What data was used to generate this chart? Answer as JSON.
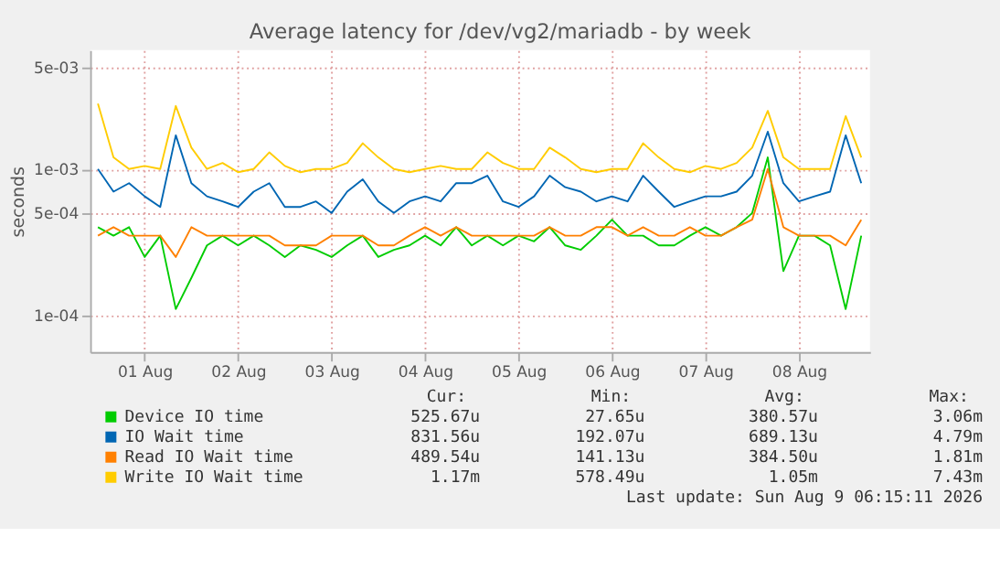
{
  "chart_data": {
    "type": "line",
    "title": "Average latency for /dev/vg2/mariadb - by week",
    "ylabel": "seconds",
    "x": [
      "2026-08-01T00:00",
      "2026-08-01T04:00",
      "2026-08-01T08:00",
      "2026-08-01T12:00",
      "2026-08-01T16:00",
      "2026-08-01T20:00",
      "2026-08-02T00:00",
      "2026-08-02T04:00",
      "2026-08-02T08:00",
      "2026-08-02T12:00",
      "2026-08-02T16:00",
      "2026-08-02T20:00",
      "2026-08-03T00:00",
      "2026-08-03T04:00",
      "2026-08-03T08:00",
      "2026-08-03T12:00",
      "2026-08-03T16:00",
      "2026-08-03T20:00",
      "2026-08-04T00:00",
      "2026-08-04T04:00",
      "2026-08-04T08:00",
      "2026-08-04T12:00",
      "2026-08-04T16:00",
      "2026-08-04T20:00",
      "2026-08-05T00:00",
      "2026-08-05T04:00",
      "2026-08-05T08:00",
      "2026-08-05T12:00",
      "2026-08-05T16:00",
      "2026-08-05T20:00",
      "2026-08-06T00:00",
      "2026-08-06T04:00",
      "2026-08-06T08:00",
      "2026-08-06T12:00",
      "2026-08-06T16:00",
      "2026-08-06T20:00",
      "2026-08-07T00:00",
      "2026-08-07T04:00",
      "2026-08-07T08:00",
      "2026-08-07T12:00",
      "2026-08-07T16:00",
      "2026-08-07T20:00",
      "2026-08-08T00:00",
      "2026-08-08T04:00",
      "2026-08-08T08:00",
      "2026-08-08T12:00",
      "2026-08-08T16:00",
      "2026-08-08T20:00",
      "2026-08-09T00:00",
      "2026-08-09T04:00"
    ],
    "series": [
      {
        "name": "Device IO time",
        "color": "#00cc00",
        "values": [
          0.0004,
          0.00035,
          0.0004,
          0.00025,
          0.00035,
          0.00011,
          0.00018,
          0.0003,
          0.00035,
          0.0003,
          0.00035,
          0.0003,
          0.00025,
          0.0003,
          0.00028,
          0.00025,
          0.0003,
          0.00035,
          0.00025,
          0.00028,
          0.0003,
          0.00035,
          0.0003,
          0.0004,
          0.0003,
          0.00035,
          0.0003,
          0.00035,
          0.00032,
          0.0004,
          0.0003,
          0.00028,
          0.00035,
          0.00045,
          0.00035,
          0.00035,
          0.0003,
          0.0003,
          0.00035,
          0.0004,
          0.00035,
          0.0004,
          0.0005,
          0.0012,
          0.0002,
          0.00035,
          0.00035,
          0.0003,
          0.00011,
          0.00035
        ]
      },
      {
        "name": "IO Wait time",
        "color": "#0066b3",
        "values": [
          0.001,
          0.0007,
          0.0008,
          0.00065,
          0.00055,
          0.0017,
          0.0008,
          0.00065,
          0.0006,
          0.00055,
          0.0007,
          0.0008,
          0.00055,
          0.00055,
          0.0006,
          0.0005,
          0.0007,
          0.00085,
          0.0006,
          0.0005,
          0.0006,
          0.00065,
          0.0006,
          0.0008,
          0.0008,
          0.0009,
          0.0006,
          0.00055,
          0.00065,
          0.0009,
          0.00075,
          0.0007,
          0.0006,
          0.00065,
          0.0006,
          0.0009,
          0.0007,
          0.00055,
          0.0006,
          0.00065,
          0.00065,
          0.0007,
          0.0009,
          0.0018,
          0.0008,
          0.0006,
          0.00065,
          0.0007,
          0.0017,
          0.0008
        ]
      },
      {
        "name": "Read IO Wait time",
        "color": "#ff8000",
        "values": [
          0.00035,
          0.0004,
          0.00035,
          0.00035,
          0.00035,
          0.00025,
          0.0004,
          0.00035,
          0.00035,
          0.00035,
          0.00035,
          0.00035,
          0.0003,
          0.0003,
          0.0003,
          0.00035,
          0.00035,
          0.00035,
          0.0003,
          0.0003,
          0.00035,
          0.0004,
          0.00035,
          0.0004,
          0.00035,
          0.00035,
          0.00035,
          0.00035,
          0.00035,
          0.0004,
          0.00035,
          0.00035,
          0.0004,
          0.0004,
          0.00035,
          0.0004,
          0.00035,
          0.00035,
          0.0004,
          0.00035,
          0.00035,
          0.0004,
          0.00045,
          0.001,
          0.0004,
          0.00035,
          0.00035,
          0.00035,
          0.0003,
          0.00045
        ]
      },
      {
        "name": "Write IO Wait time",
        "color": "#ffcc00",
        "values": [
          0.0028,
          0.0012,
          0.001,
          0.00105,
          0.001,
          0.0027,
          0.0014,
          0.001,
          0.0011,
          0.00095,
          0.001,
          0.0013,
          0.00105,
          0.00095,
          0.001,
          0.001,
          0.0011,
          0.0015,
          0.0012,
          0.001,
          0.00095,
          0.001,
          0.00105,
          0.001,
          0.001,
          0.0013,
          0.0011,
          0.001,
          0.001,
          0.0014,
          0.0012,
          0.001,
          0.00095,
          0.001,
          0.001,
          0.0015,
          0.0012,
          0.001,
          0.00095,
          0.00105,
          0.001,
          0.0011,
          0.0014,
          0.0025,
          0.0012,
          0.001,
          0.001,
          0.001,
          0.0023,
          0.0012
        ]
      }
    ],
    "xlim": [
      "2026-07-31T22:00",
      "2026-08-09T06:15"
    ],
    "xticks": [
      {
        "value": "2026-08-01T12:00",
        "label": "01 Aug"
      },
      {
        "value": "2026-08-02T12:00",
        "label": "02 Aug"
      },
      {
        "value": "2026-08-03T12:00",
        "label": "03 Aug"
      },
      {
        "value": "2026-08-04T12:00",
        "label": "04 Aug"
      },
      {
        "value": "2026-08-05T12:00",
        "label": "05 Aug"
      },
      {
        "value": "2026-08-06T12:00",
        "label": "06 Aug"
      },
      {
        "value": "2026-08-07T12:00",
        "label": "07 Aug"
      },
      {
        "value": "2026-08-08T12:00",
        "label": "08 Aug"
      }
    ],
    "ylim": [
      5.6e-05,
      0.0065
    ],
    "log": "y",
    "yticks": [
      {
        "value": 0.0001,
        "label": "1e-04"
      },
      {
        "value": 0.0005,
        "label": "5e-04"
      },
      {
        "value": 0.001,
        "label": "1e-03"
      },
      {
        "value": 0.005,
        "label": "5e-03"
      }
    ],
    "grid": true,
    "legend": "bottom",
    "marker": "none",
    "line_style": "solid",
    "annotations": [
      "Cur:",
      "Min:",
      "Avg:",
      "Max:",
      "525.67u",
      "27.65u",
      "380.57u",
      "3.06m",
      "831.56u",
      "192.07u",
      "689.13u",
      "4.79m",
      "489.54u",
      "141.13u",
      "384.50u",
      "1.81m",
      "1.17m",
      "578.49u",
      "1.05m",
      "7.43m",
      "Last update: Sun Aug  9 06:15:11 2026"
    ]
  }
}
